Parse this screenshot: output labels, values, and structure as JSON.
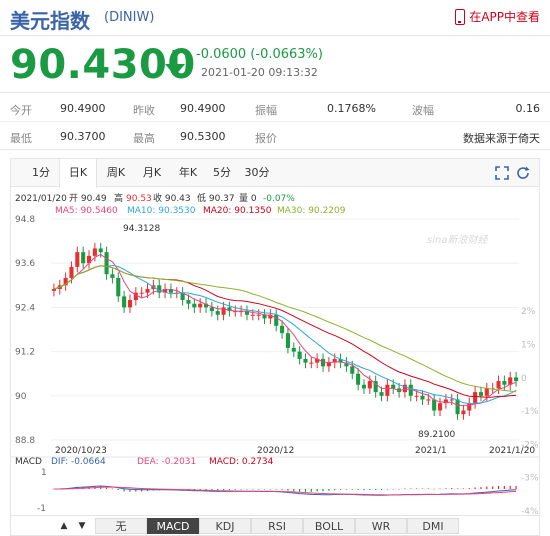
{
  "header": {
    "name": "美元指数",
    "code": "(DINIW)",
    "app_link": "在APP中查看"
  },
  "quote": {
    "price": "90.4300",
    "change": "-0.0600 (-0.0663%)",
    "timestamp": "2021-01-20 09:13:32"
  },
  "stats": {
    "open_label": "今开",
    "open": "90.4900",
    "prev_close_label": "昨收",
    "prev_close": "90.4900",
    "amplitude_label": "振幅",
    "amplitude": "0.1768%",
    "volatility_label": "波幅",
    "volatility": "0.16",
    "low_label": "最低",
    "low": "90.3700",
    "high_label": "最高",
    "high": "90.5300",
    "quote_label": "报价",
    "quote_source": "数据来源于倚天"
  },
  "tabs": [
    "1分",
    "日K",
    "周K",
    "月K",
    "年K",
    "5分",
    "30分"
  ],
  "active_tab": "日K",
  "info_line": {
    "date": "2021/01/20",
    "open": "开 90.49",
    "high_label": "高",
    "high": "90.53",
    "close": "收 90.43",
    "low": "低 90.37",
    "zero": "量 0",
    "pct": "-0.07%"
  },
  "ma_line": {
    "ma5": "MA5: 90.5460",
    "ma10": "MA10: 90.3530",
    "ma20": "MA20: 90.1350",
    "ma30": "MA30: 90.2209"
  },
  "watermark": "sina新浪财经",
  "chart_data": {
    "type": "candlestick",
    "y_ticks": [
      "94.8",
      "93.6",
      "92.4",
      "91.2",
      "90",
      "88.8"
    ],
    "y_range": [
      88.8,
      94.8
    ],
    "pct_ticks": [
      "2%",
      "1%",
      "0",
      "-1%",
      "-2%",
      "-3%",
      "-4%"
    ],
    "x_labels": [
      "2020/10/23",
      "2020/12",
      "2021/1",
      "2021/1/20"
    ],
    "annotations": {
      "max": "94.3128",
      "min": "89.2100"
    },
    "closes": [
      92.9,
      93.0,
      93.2,
      93.5,
      93.9,
      93.6,
      93.8,
      94.0,
      93.9,
      93.3,
      93.2,
      92.7,
      92.4,
      92.6,
      92.8,
      92.8,
      92.9,
      93.0,
      92.8,
      92.9,
      92.8,
      92.8,
      92.6,
      92.5,
      92.4,
      92.5,
      92.4,
      92.3,
      92.2,
      92.4,
      92.3,
      92.3,
      92.3,
      92.2,
      92.2,
      92.2,
      92.1,
      92.2,
      91.9,
      91.7,
      91.3,
      91.2,
      91.0,
      90.9,
      90.9,
      91.0,
      90.8,
      90.9,
      91.0,
      90.9,
      90.8,
      90.6,
      90.3,
      90.2,
      90.4,
      90.1,
      90.0,
      90.3,
      90.2,
      90.1,
      90.3,
      90.0,
      90.0,
      89.9,
      89.9,
      89.6,
      89.8,
      89.9,
      89.9,
      89.5,
      89.6,
      89.8,
      90.1,
      90.0,
      90.2,
      90.2,
      90.4,
      90.3,
      90.5,
      90.4
    ],
    "macd": {
      "dif": "DIF: -0.0664",
      "dea": "DEA: -0.2031",
      "macd": "MACD: 0.2734",
      "ticks": [
        "1",
        "-1"
      ]
    }
  },
  "indicators": [
    "无",
    "MACD",
    "KDJ",
    "RSI",
    "BOLL",
    "WR",
    "DMI"
  ],
  "active_indicator": "MACD",
  "colors": {
    "up": "#e63030",
    "down": "#1a9a43",
    "ma5": "#e8457e",
    "ma10": "#30a8d8",
    "ma20": "#d0021b",
    "ma30": "#8fb22b"
  }
}
